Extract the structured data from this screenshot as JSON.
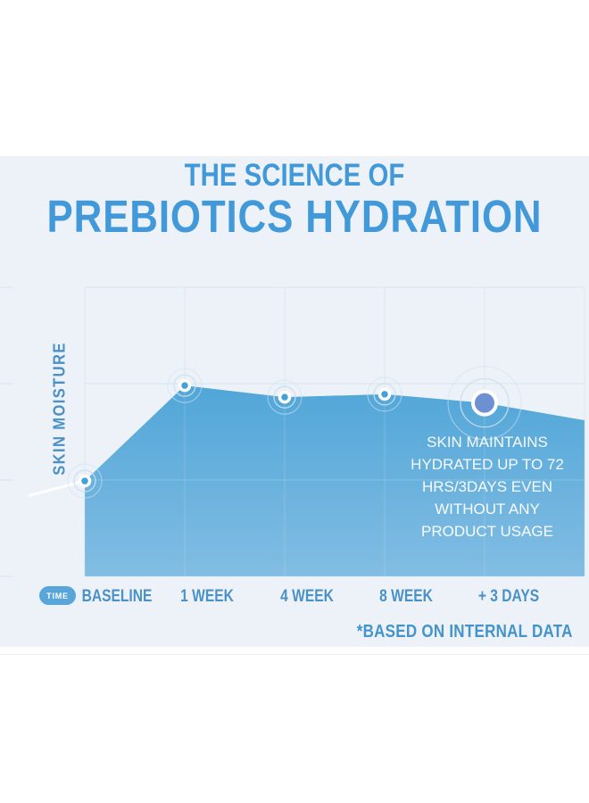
{
  "header": {
    "line1": "THE SCIENCE OF",
    "line2": "PREBIOTICS HYDRATION"
  },
  "axis": {
    "y_label": "SKIN MOISTURE",
    "x_badge": "TIME"
  },
  "chart_data": {
    "type": "area",
    "title": "THE SCIENCE OF PREBIOTICS HYDRATION",
    "categories": [
      "BASELINE",
      "1 WEEK",
      "4 WEEK",
      "8 WEEK",
      "+ 3 DAYS"
    ],
    "values": [
      33,
      66,
      62,
      63,
      60
    ],
    "lead_in_value": 28,
    "trail_value": 54,
    "highlight_index": 4,
    "xlabel": "TIME",
    "ylabel": "SKIN MOISTURE",
    "ylim": [
      0,
      100
    ],
    "grid": true,
    "legend": "none",
    "annotation": "SKIN MAINTAINS HYDRATED UP TO 72 HRS/3DAYS EVEN WITHOUT ANY PRODUCT USAGE"
  },
  "annotation": {
    "lines": [
      "SKIN MAINTAINS",
      "HYDRATED UP TO 72",
      "HRS/3DAYS EVEN",
      "WITHOUT ANY",
      "PRODUCT USAGE"
    ]
  },
  "footnote": {
    "text": "*BASED ON INTERNAL DATA"
  },
  "colors": {
    "title": "#4299d9",
    "axis_text": "#4a91c8",
    "background": "#edf2f8",
    "badge": "#58a5da",
    "grid": "#d7e4ef",
    "area_top": "#51a6d8",
    "area_bottom": "#82bde3",
    "dot": "#43a2d9",
    "highlight_dot": "#6e90d2",
    "annotation_text": "#ffffff"
  }
}
